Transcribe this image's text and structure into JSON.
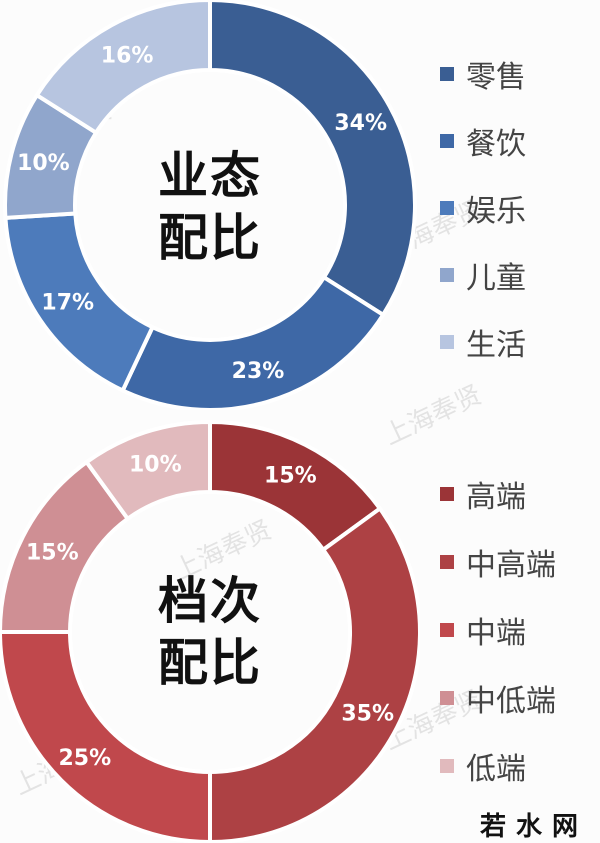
{
  "chart_data": [
    {
      "type": "pie",
      "variant": "donut",
      "title": "业态配比",
      "categories": [
        "零售",
        "餐饮",
        "娱乐",
        "儿童",
        "生活"
      ],
      "values": [
        34,
        23,
        17,
        10,
        16
      ],
      "labels": [
        "34%",
        "23%",
        "17%",
        "10%",
        "16%"
      ],
      "colors": [
        "#3a5e93",
        "#3e68a6",
        "#4d7bbb",
        "#90a6cc",
        "#b7c5e0"
      ],
      "legend_position": "right"
    },
    {
      "type": "pie",
      "variant": "donut",
      "title": "档次配比",
      "categories": [
        "高端",
        "中高端",
        "中端",
        "中低端",
        "低端"
      ],
      "values": [
        15,
        35,
        25,
        15,
        10
      ],
      "labels": [
        "15%",
        "35%",
        "25%",
        "15%",
        "10%"
      ],
      "colors": [
        "#9b3437",
        "#ad4144",
        "#c0484c",
        "#cf8f94",
        "#e1babd"
      ],
      "legend_position": "right"
    }
  ],
  "chart1": {
    "title_line1": "业态",
    "title_line2": "配比",
    "legend": [
      {
        "label": "零售",
        "color": "#3a5e93"
      },
      {
        "label": "餐饮",
        "color": "#3e68a6"
      },
      {
        "label": "娱乐",
        "color": "#4d7bbb"
      },
      {
        "label": "儿童",
        "color": "#90a6cc"
      },
      {
        "label": "生活",
        "color": "#b7c5e0"
      }
    ]
  },
  "chart2": {
    "title_line1": "档次",
    "title_line2": "配比",
    "legend": [
      {
        "label": "高端",
        "color": "#9b3437"
      },
      {
        "label": "中高端",
        "color": "#ad4144"
      },
      {
        "label": "中端",
        "color": "#c0484c"
      },
      {
        "label": "中低端",
        "color": "#cf8f94"
      },
      {
        "label": "低端",
        "color": "#e1babd"
      }
    ]
  },
  "watermark": "上海奉贤",
  "brand": "若水网"
}
